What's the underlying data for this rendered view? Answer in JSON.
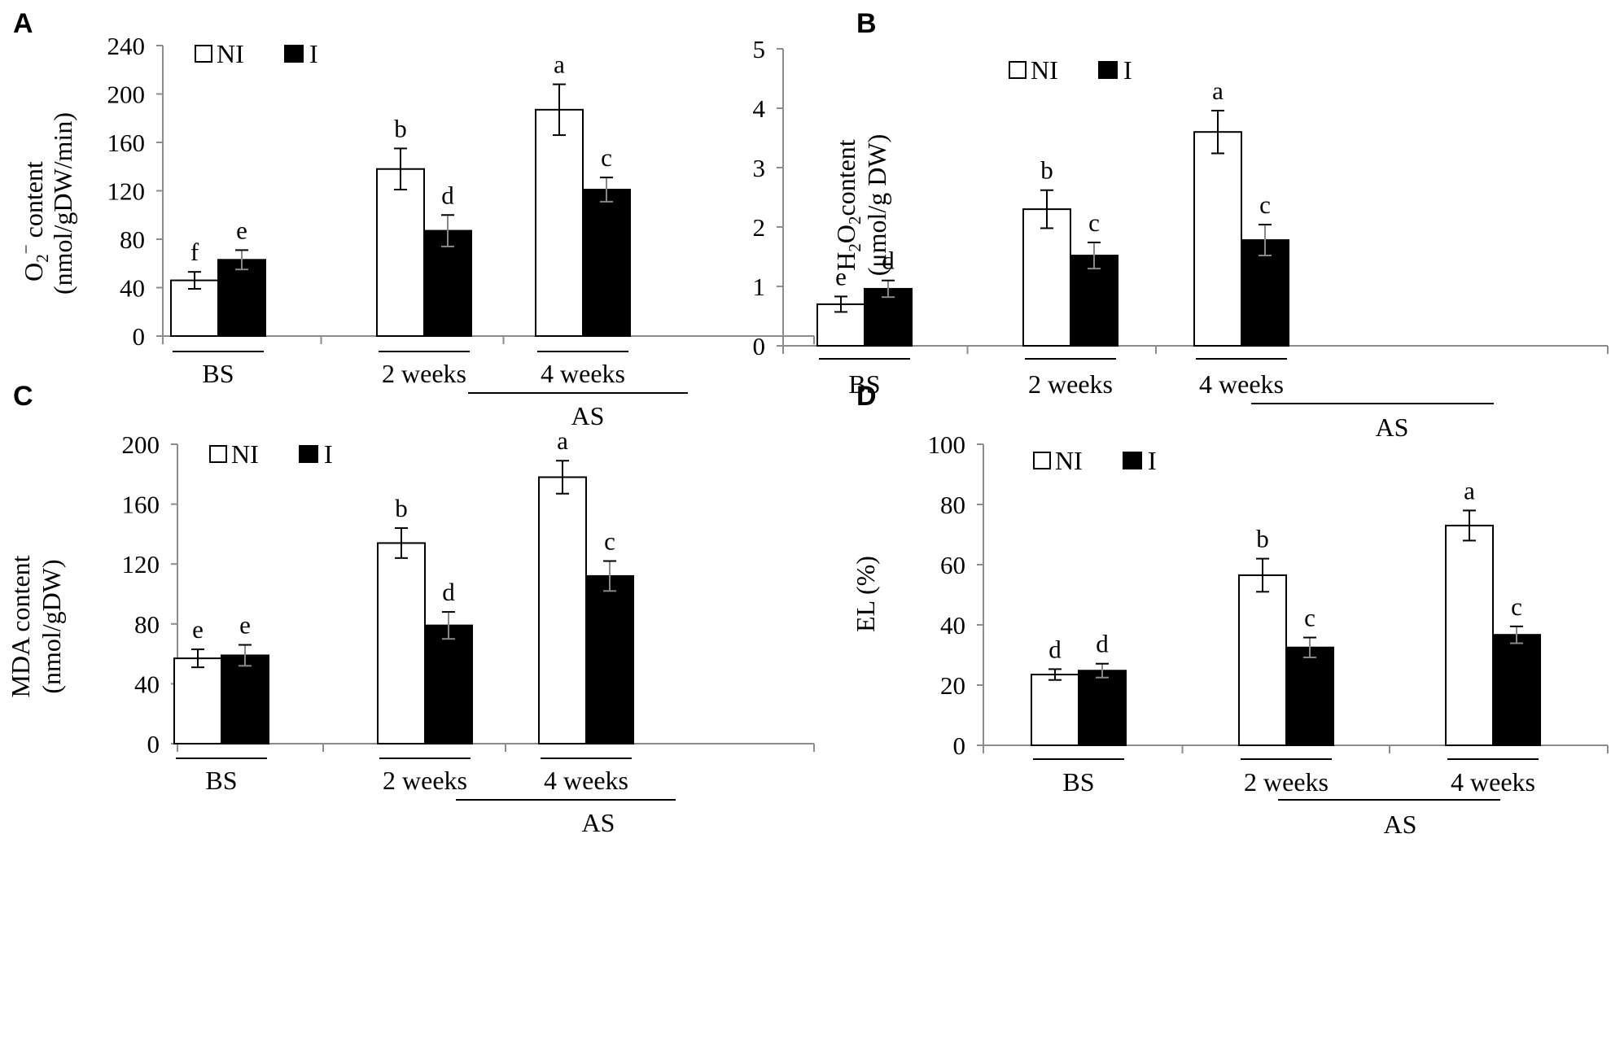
{
  "chart_data": [
    {
      "panel": "A",
      "type": "bar",
      "ylabel_main": "O",
      "ylabel_sub": "2",
      "ylabel_sup": "−",
      "ylabel_rest": " content",
      "ylabel_units": "(nmol/gDW/min)",
      "ylim": [
        0,
        240
      ],
      "yticks": [
        "0",
        "40",
        "80",
        "120",
        "160",
        "200",
        "240"
      ],
      "categories": [
        "BS",
        "2 weeks",
        "4 weeks"
      ],
      "group_label": "AS",
      "legend": [
        "NI",
        "I"
      ],
      "series": [
        {
          "name": "NI",
          "values": [
            46,
            138,
            187
          ],
          "errors": [
            7,
            17,
            21
          ],
          "letters": [
            "f",
            "b",
            "a"
          ]
        },
        {
          "name": "I",
          "values": [
            63,
            87,
            121
          ],
          "errors": [
            8,
            13,
            10
          ],
          "letters": [
            "e",
            "d",
            "c"
          ]
        }
      ]
    },
    {
      "panel": "B",
      "type": "bar",
      "ylabel_main": "H",
      "ylabel_sub": "2",
      "ylabel_mid": "O",
      "ylabel_sub2": "2",
      "ylabel_rest": "content",
      "ylabel_units": "(μmol/g DW)",
      "ylim": [
        0,
        5
      ],
      "yticks": [
        "0",
        "1",
        "2",
        "3",
        "4",
        "5"
      ],
      "categories": [
        "BS",
        "2 weeks",
        "4 weeks"
      ],
      "group_label": "AS",
      "legend": [
        "NI",
        "I"
      ],
      "series": [
        {
          "name": "NI",
          "values": [
            0.7,
            2.3,
            3.6
          ],
          "errors": [
            0.13,
            0.32,
            0.36
          ],
          "letters": [
            "e",
            "b",
            "a"
          ]
        },
        {
          "name": "I",
          "values": [
            0.96,
            1.52,
            1.78
          ],
          "errors": [
            0.14,
            0.22,
            0.26
          ],
          "letters": [
            "d",
            "c",
            "c"
          ]
        }
      ]
    },
    {
      "panel": "C",
      "type": "bar",
      "ylabel_main": "MDA content",
      "ylabel_units": "(nmol/gDW)",
      "ylim": [
        0,
        200
      ],
      "yticks": [
        "0",
        "40",
        "80",
        "120",
        "160",
        "200"
      ],
      "categories": [
        "BS",
        "2 weeks",
        "4 weeks"
      ],
      "group_label": "AS",
      "legend": [
        "NI",
        "I"
      ],
      "series": [
        {
          "name": "NI",
          "values": [
            57,
            134,
            178
          ],
          "errors": [
            6,
            10,
            11
          ],
          "letters": [
            "e",
            "b",
            "a"
          ]
        },
        {
          "name": "I",
          "values": [
            59,
            79,
            112
          ],
          "errors": [
            7,
            9,
            10
          ],
          "letters": [
            "e",
            "d",
            "c"
          ]
        }
      ]
    },
    {
      "panel": "D",
      "type": "bar",
      "ylabel_main": "EL (%)",
      "ylim": [
        0,
        100
      ],
      "yticks": [
        "0",
        "20",
        "40",
        "60",
        "80",
        "100"
      ],
      "categories": [
        "BS",
        "2 weeks",
        "4 weeks"
      ],
      "group_label": "AS",
      "legend": [
        "NI",
        "I"
      ],
      "series": [
        {
          "name": "NI",
          "values": [
            23.5,
            56.5,
            73
          ],
          "errors": [
            1.8,
            5.5,
            5
          ],
          "letters": [
            "d",
            "b",
            "a"
          ]
        },
        {
          "name": "I",
          "values": [
            24.8,
            32.5,
            36.7
          ],
          "errors": [
            2.3,
            3.3,
            2.8
          ],
          "letters": [
            "d",
            "c",
            "c"
          ]
        }
      ]
    }
  ]
}
